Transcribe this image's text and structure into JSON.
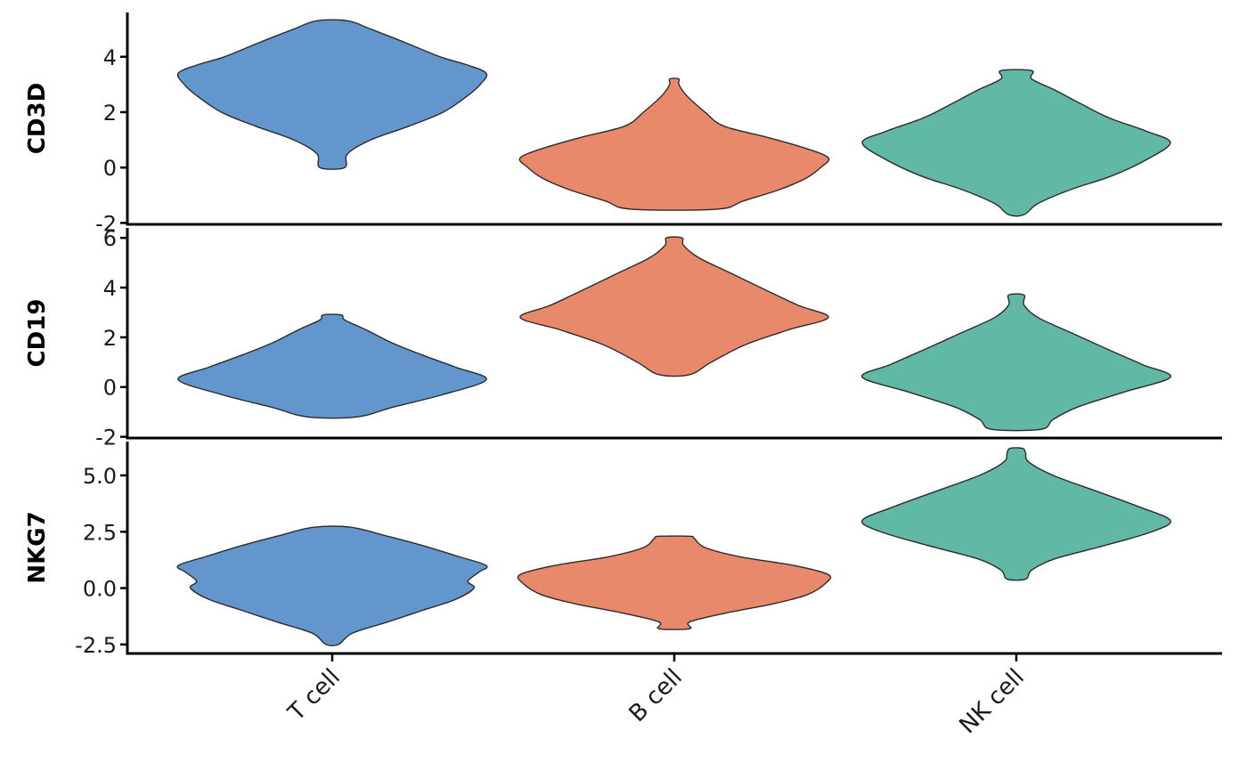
{
  "chart_data": {
    "type": "violin",
    "categories": [
      "T cell",
      "B cell",
      "NK cell"
    ],
    "colors": [
      "#6396cc",
      "#e9896b",
      "#61b8a5"
    ],
    "outline_color": "#2b2b2b",
    "grid": false,
    "legend": "none",
    "panels": [
      {
        "gene": "CD3D",
        "ylim": [
          -2.05,
          5.6
        ],
        "ticks": [
          -2,
          0,
          2,
          4
        ],
        "tick_labels": [
          "-2",
          "0",
          "2",
          "4"
        ],
        "violins": [
          {
            "category": "T cell",
            "ymin": 0.0,
            "ymax": 5.3,
            "profile": [
              [
                0.0,
                0.08
              ],
              [
                0.5,
                0.1
              ],
              [
                1.0,
                0.25
              ],
              [
                1.5,
                0.5
              ],
              [
                2.0,
                0.72
              ],
              [
                2.6,
                0.88
              ],
              [
                3.0,
                0.96
              ],
              [
                3.4,
                1.0
              ],
              [
                3.7,
                0.88
              ],
              [
                4.0,
                0.7
              ],
              [
                4.5,
                0.48
              ],
              [
                5.0,
                0.25
              ],
              [
                5.3,
                0.1
              ]
            ]
          },
          {
            "category": "B cell",
            "ymin": -1.5,
            "ymax": 3.2,
            "profile": [
              [
                -1.5,
                0.28
              ],
              [
                -1.2,
                0.45
              ],
              [
                -0.8,
                0.68
              ],
              [
                -0.4,
                0.85
              ],
              [
                0.0,
                0.95
              ],
              [
                0.35,
                1.0
              ],
              [
                0.7,
                0.85
              ],
              [
                1.1,
                0.6
              ],
              [
                1.5,
                0.32
              ],
              [
                2.0,
                0.2
              ],
              [
                2.6,
                0.08
              ],
              [
                3.0,
                0.03
              ],
              [
                3.2,
                0.03
              ]
            ]
          },
          {
            "category": "NK cell",
            "ymin": -1.7,
            "ymax": 3.5,
            "profile": [
              [
                -1.7,
                0.05
              ],
              [
                -1.3,
                0.14
              ],
              [
                -0.8,
                0.35
              ],
              [
                -0.3,
                0.62
              ],
              [
                0.3,
                0.85
              ],
              [
                0.9,
                1.0
              ],
              [
                1.3,
                0.85
              ],
              [
                1.8,
                0.6
              ],
              [
                2.3,
                0.42
              ],
              [
                2.8,
                0.25
              ],
              [
                3.2,
                0.1
              ],
              [
                3.5,
                0.1
              ]
            ]
          }
        ]
      },
      {
        "gene": "CD19",
        "ylim": [
          -2.05,
          6.4
        ],
        "ticks": [
          -2,
          0,
          2,
          4,
          6
        ],
        "tick_labels": [
          "-2",
          "0",
          "2",
          "4",
          "6"
        ],
        "violins": [
          {
            "category": "T cell",
            "ymin": -1.2,
            "ymax": 2.9,
            "profile": [
              [
                -1.2,
                0.16
              ],
              [
                -0.8,
                0.4
              ],
              [
                -0.3,
                0.72
              ],
              [
                0.3,
                1.0
              ],
              [
                0.8,
                0.8
              ],
              [
                1.3,
                0.58
              ],
              [
                1.8,
                0.38
              ],
              [
                2.3,
                0.22
              ],
              [
                2.7,
                0.08
              ],
              [
                2.9,
                0.06
              ]
            ]
          },
          {
            "category": "B cell",
            "ymin": 0.5,
            "ymax": 6.0,
            "profile": [
              [
                0.5,
                0.1
              ],
              [
                1.0,
                0.24
              ],
              [
                1.7,
                0.46
              ],
              [
                2.3,
                0.74
              ],
              [
                2.8,
                1.0
              ],
              [
                3.3,
                0.8
              ],
              [
                4.0,
                0.56
              ],
              [
                4.6,
                0.36
              ],
              [
                5.2,
                0.16
              ],
              [
                5.7,
                0.06
              ],
              [
                6.0,
                0.05
              ]
            ]
          },
          {
            "category": "NK cell",
            "ymin": -1.7,
            "ymax": 3.7,
            "profile": [
              [
                -1.7,
                0.16
              ],
              [
                -1.3,
                0.24
              ],
              [
                -0.8,
                0.4
              ],
              [
                -0.2,
                0.7
              ],
              [
                0.4,
                1.0
              ],
              [
                0.9,
                0.82
              ],
              [
                1.5,
                0.6
              ],
              [
                2.2,
                0.35
              ],
              [
                2.8,
                0.14
              ],
              [
                3.3,
                0.05
              ],
              [
                3.7,
                0.05
              ]
            ]
          }
        ]
      },
      {
        "gene": "NKG7",
        "ylim": [
          -2.9,
          6.5
        ],
        "ticks": [
          -2.5,
          0.0,
          2.5,
          5.0
        ],
        "tick_labels": [
          "-2.5",
          "0.0",
          "2.5",
          "5.0"
        ],
        "violins": [
          {
            "category": "T cell",
            "ymin": -2.5,
            "ymax": 2.7,
            "profile": [
              [
                -2.5,
                0.04
              ],
              [
                -2.0,
                0.13
              ],
              [
                -1.5,
                0.36
              ],
              [
                -1.0,
                0.58
              ],
              [
                -0.5,
                0.8
              ],
              [
                0.0,
                0.92
              ],
              [
                0.3,
                0.88
              ],
              [
                0.7,
                0.95
              ],
              [
                1.0,
                1.0
              ],
              [
                1.4,
                0.82
              ],
              [
                1.9,
                0.58
              ],
              [
                2.3,
                0.36
              ],
              [
                2.7,
                0.12
              ]
            ]
          },
          {
            "category": "B cell",
            "ymin": -1.8,
            "ymax": 2.3,
            "profile": [
              [
                -1.8,
                0.1
              ],
              [
                -1.5,
                0.1
              ],
              [
                -1.1,
                0.34
              ],
              [
                -0.7,
                0.64
              ],
              [
                -0.3,
                0.86
              ],
              [
                0.2,
                0.98
              ],
              [
                0.6,
                1.0
              ],
              [
                1.0,
                0.78
              ],
              [
                1.4,
                0.42
              ],
              [
                1.8,
                0.2
              ],
              [
                2.2,
                0.13
              ],
              [
                2.3,
                0.1
              ]
            ]
          },
          {
            "category": "NK cell",
            "ymin": 0.4,
            "ymax": 6.2,
            "profile": [
              [
                0.4,
                0.06
              ],
              [
                0.8,
                0.1
              ],
              [
                1.3,
                0.25
              ],
              [
                1.9,
                0.58
              ],
              [
                2.5,
                0.88
              ],
              [
                3.0,
                1.0
              ],
              [
                3.6,
                0.8
              ],
              [
                4.3,
                0.52
              ],
              [
                5.0,
                0.24
              ],
              [
                5.6,
                0.08
              ],
              [
                6.0,
                0.06
              ],
              [
                6.2,
                0.04
              ]
            ]
          }
        ]
      }
    ]
  }
}
